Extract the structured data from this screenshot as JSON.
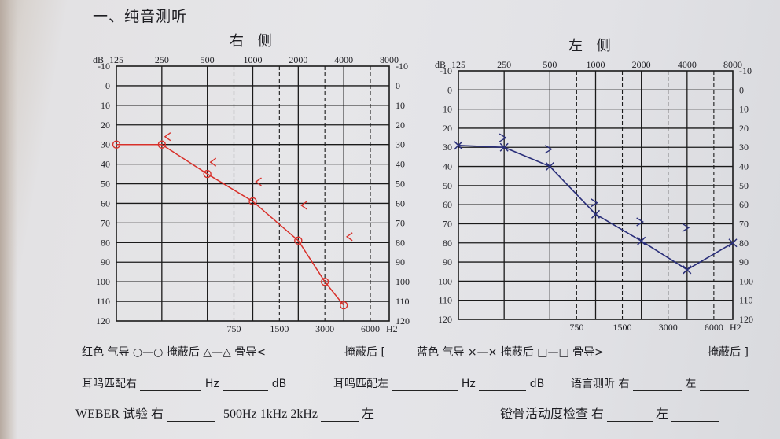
{
  "section_title": "一、纯音测听",
  "right_ear": {
    "title": "右 侧",
    "db_label": "dB",
    "top_freqs": [
      "125",
      "250",
      "500",
      "1000",
      "2000",
      "4000",
      "8000"
    ],
    "bottom_freqs": [
      "750",
      "1500",
      "3000",
      "6000"
    ],
    "hz_label": "H2",
    "db_ticks": [
      "-10",
      "0",
      "10",
      "20",
      "30",
      "40",
      "50",
      "60",
      "70",
      "80",
      "90",
      "100",
      "110",
      "120"
    ],
    "air_conduction": [
      {
        "freq": 125,
        "db": 30
      },
      {
        "freq": 250,
        "db": 30
      },
      {
        "freq": 500,
        "db": 45
      },
      {
        "freq": 1000,
        "db": 59
      },
      {
        "freq": 2000,
        "db": 79
      },
      {
        "freq": 3000,
        "db": 100
      },
      {
        "freq": 4000,
        "db": 112
      }
    ],
    "bone_conduction": [
      {
        "freq": 250,
        "db": 26
      },
      {
        "freq": 500,
        "db": 39
      },
      {
        "freq": 1000,
        "db": 49
      },
      {
        "freq": 2000,
        "db": 61
      },
      {
        "freq": 4000,
        "db": 77
      }
    ],
    "color": "#d8302a"
  },
  "left_ear": {
    "title": "左 侧",
    "db_label": "dB",
    "top_freqs": [
      "125",
      "250",
      "500",
      "1000",
      "2000",
      "4000",
      "8000"
    ],
    "bottom_freqs": [
      "750",
      "1500",
      "3000",
      "6000"
    ],
    "hz_label": "H2",
    "db_ticks": [
      "-10",
      "0",
      "10",
      "20",
      "30",
      "40",
      "50",
      "60",
      "70",
      "80",
      "90",
      "100",
      "110",
      "120"
    ],
    "air_conduction": [
      {
        "freq": 125,
        "db": 29
      },
      {
        "freq": 250,
        "db": 30
      },
      {
        "freq": 500,
        "db": 40
      },
      {
        "freq": 1000,
        "db": 65
      },
      {
        "freq": 2000,
        "db": 79
      },
      {
        "freq": 4000,
        "db": 94
      },
      {
        "freq": 8000,
        "db": 80
      }
    ],
    "bone_conduction": [
      {
        "freq": 250,
        "db": 25
      },
      {
        "freq": 500,
        "db": 31
      },
      {
        "freq": 1000,
        "db": 59
      },
      {
        "freq": 2000,
        "db": 69
      },
      {
        "freq": 4000,
        "db": 72
      }
    ],
    "color": "#2a2f7a"
  },
  "legend": {
    "red_air": "红色 气导 ○—○ 掩蔽后 △—△ 骨导<",
    "red_masked": "掩蔽后 [",
    "blue_air": "蓝色 气导 ×—× 掩蔽后 □—□ 骨导>",
    "blue_masked": "掩蔽后 ]"
  },
  "form": {
    "tinnitus_right": "耳鸣匹配右",
    "hz1": "Hz",
    "db1": "dB",
    "tinnitus_left": "耳鸣匹配左",
    "hz2": "Hz",
    "db2": "dB",
    "speech": "语言测听 右",
    "speech_left": "左",
    "weber": "WEBER 试验 右",
    "weber_freqs": "500Hz  1kHz  2kHz",
    "weber_left": "左",
    "stapedius": "镫骨活动度检查 右",
    "stapedius_left": "左"
  }
}
